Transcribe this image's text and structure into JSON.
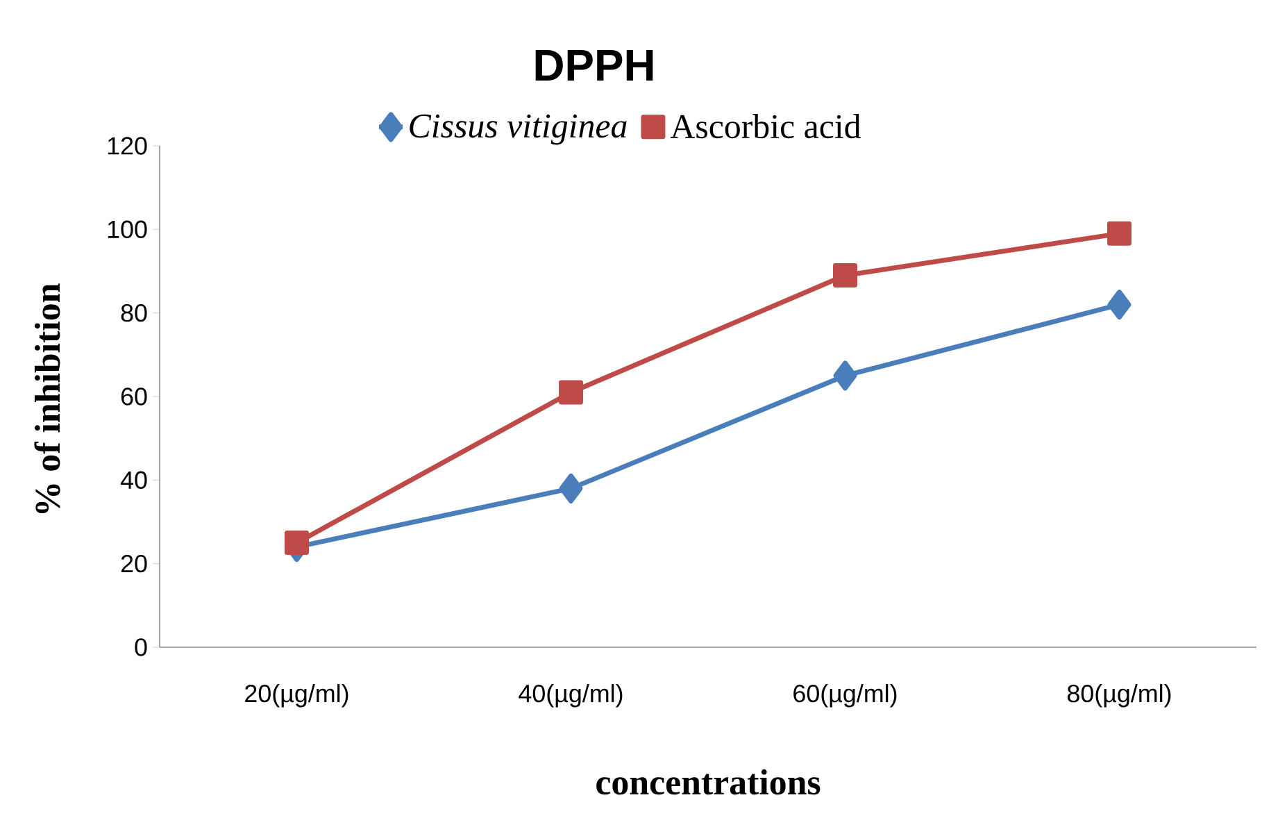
{
  "chart_data": {
    "type": "line",
    "title": "DPPH",
    "xlabel": "concentrations",
    "ylabel": "% of inhibition",
    "categories": [
      "20(µg/ml)",
      "40(µg/ml)",
      "60(µg/ml)",
      "80(µg/ml)"
    ],
    "series": [
      {
        "name": "*Cissus vitiginea*",
        "color": "#4a7ebb",
        "marker": "diamond",
        "values": [
          24,
          38,
          65,
          82
        ]
      },
      {
        "name": "Ascorbic acid",
        "color": "#be4b48",
        "marker": "square",
        "values": [
          25,
          61,
          89,
          99
        ]
      }
    ],
    "ylim": [
      0,
      120
    ],
    "yticks": [
      0,
      20,
      40,
      60,
      80,
      100,
      120
    ],
    "grid": false,
    "legend": "top",
    "line_style": "solid"
  }
}
